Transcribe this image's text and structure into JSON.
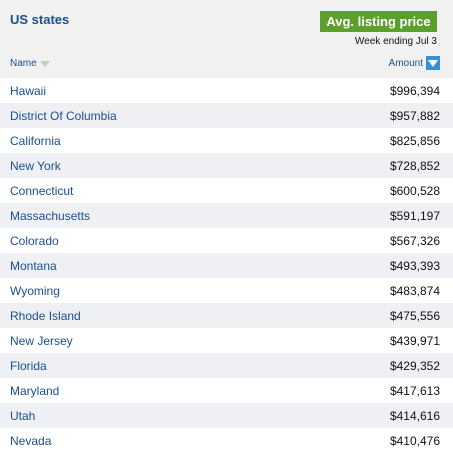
{
  "header": {
    "title": "US states",
    "badge": "Avg. listing price",
    "subtitle": "Week ending Jul 3"
  },
  "table": {
    "columns": [
      "Name",
      "Amount"
    ],
    "rows": [
      [
        "Hawaii",
        "$996,394"
      ],
      [
        "District Of Columbia",
        "$957,882"
      ],
      [
        "California",
        "$825,856"
      ],
      [
        "New York",
        "$728,852"
      ],
      [
        "Connecticut",
        "$600,528"
      ],
      [
        "Massachusetts",
        "$591,197"
      ],
      [
        "Colorado",
        "$567,326"
      ],
      [
        "Montana",
        "$493,393"
      ],
      [
        "Wyoming",
        "$483,874"
      ],
      [
        "Rhode Island",
        "$475,556"
      ],
      [
        "New Jersey",
        "$439,971"
      ],
      [
        "Florida",
        "$429,352"
      ],
      [
        "Maryland",
        "$417,613"
      ],
      [
        "Utah",
        "$414,616"
      ],
      [
        "Nevada",
        "$410,476"
      ]
    ]
  }
}
